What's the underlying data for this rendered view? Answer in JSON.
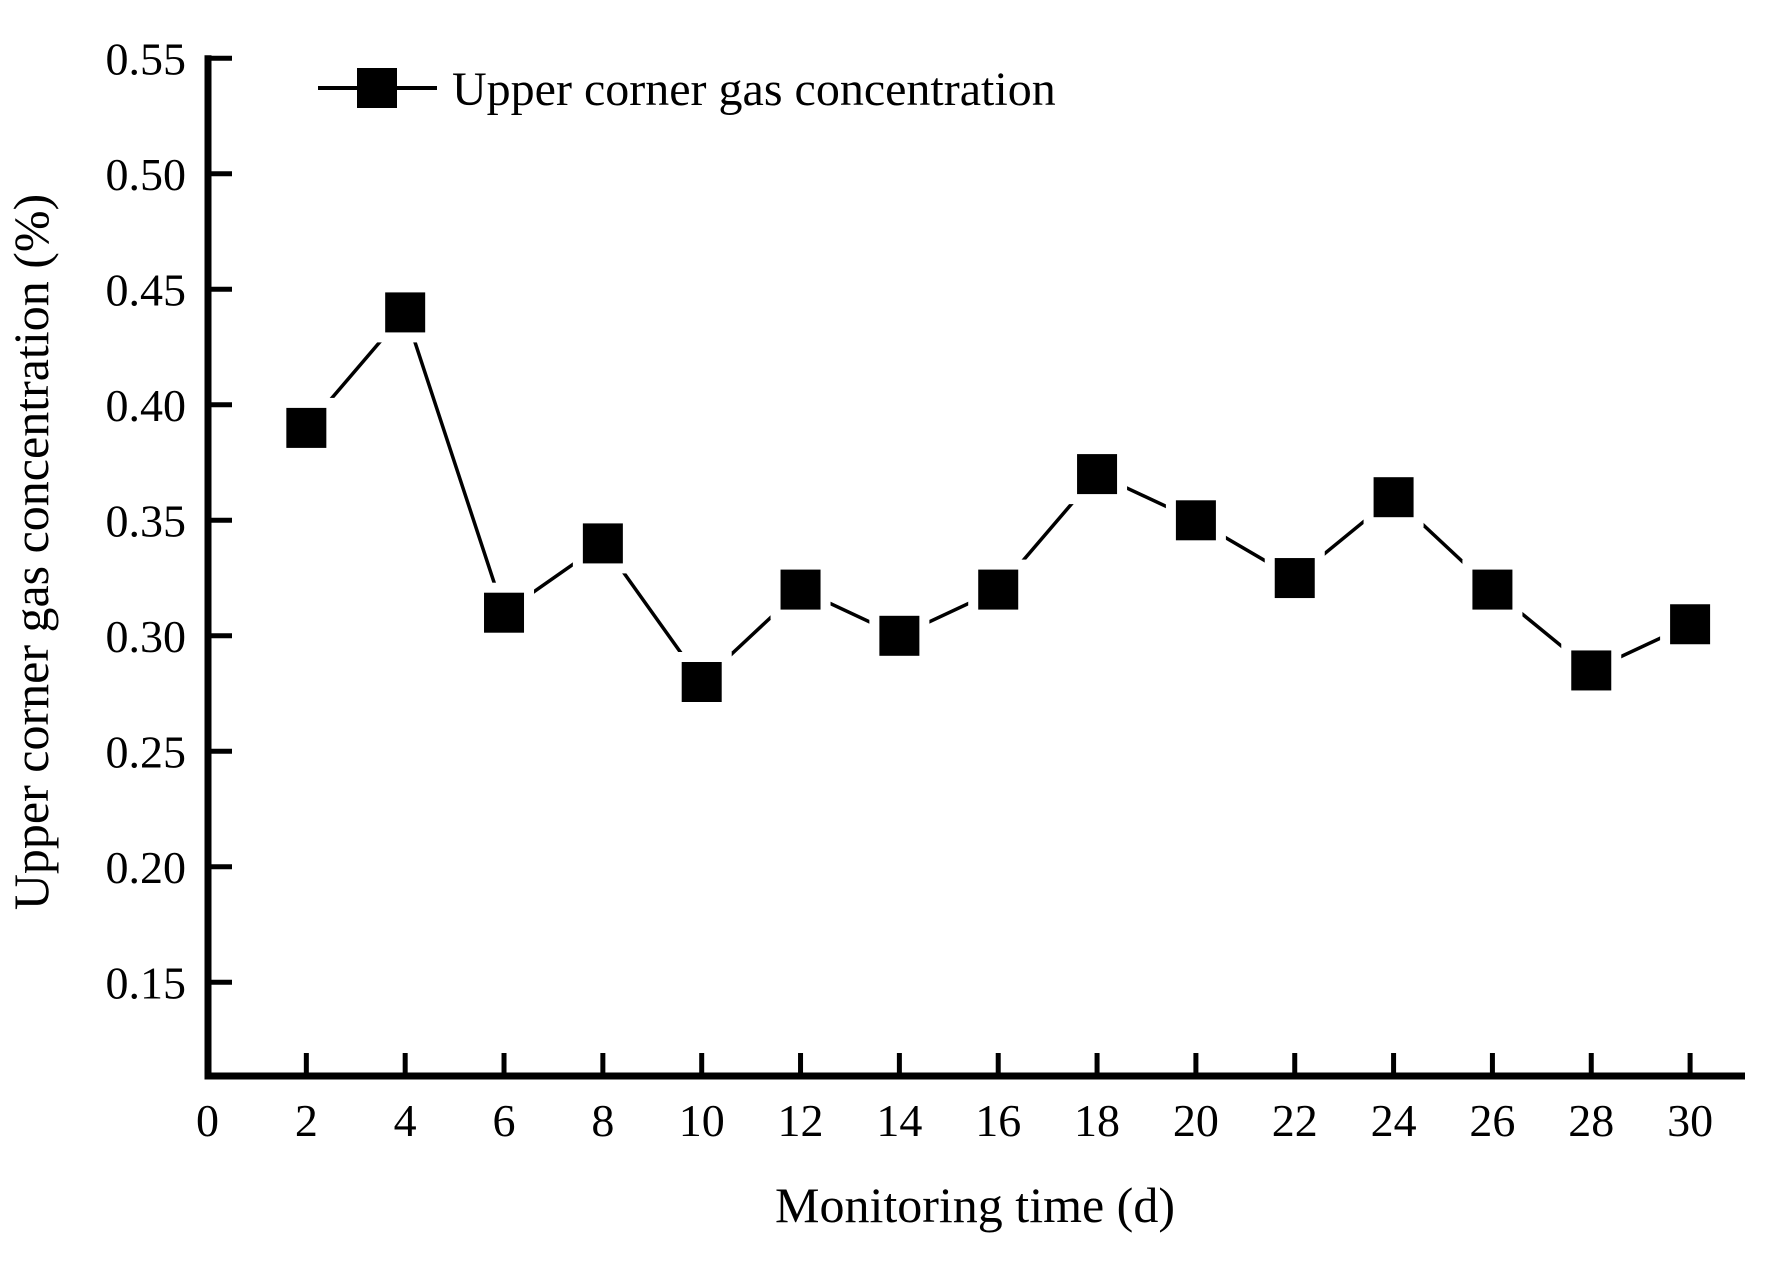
{
  "chart_data": {
    "type": "line",
    "title": "",
    "xlabel": "Monitoring time (d)",
    "ylabel": "Upper corner gas concentration (%)",
    "series": [
      {
        "name": "Upper corner gas concentration",
        "marker": "filled-square",
        "x": [
          2,
          4,
          6,
          8,
          10,
          12,
          14,
          16,
          18,
          20,
          22,
          24,
          26,
          28,
          30
        ],
        "y": [
          0.39,
          0.44,
          0.31,
          0.34,
          0.28,
          0.32,
          0.3,
          0.32,
          0.37,
          0.35,
          0.325,
          0.36,
          0.32,
          0.285,
          0.305
        ]
      }
    ],
    "xlim": [
      0,
      31
    ],
    "ylim": [
      0.11,
      0.55
    ],
    "x_ticks": [
      0,
      2,
      4,
      6,
      8,
      10,
      12,
      14,
      16,
      18,
      20,
      22,
      24,
      26,
      28,
      30
    ],
    "x_tick_labels": [
      "0",
      "2",
      "4",
      "6",
      "8",
      "10",
      "12",
      "14",
      "16",
      "18",
      "20",
      "22",
      "24",
      "26",
      "28",
      "30"
    ],
    "y_ticks": [
      0.55,
      0.5,
      0.45,
      0.4,
      0.35,
      0.3,
      0.25,
      0.2,
      0.15
    ],
    "y_tick_labels": [
      "0.55",
      "0.50",
      "0.45",
      "0.40",
      "0.35",
      "0.30",
      "0.25",
      "0.20",
      "0.15"
    ],
    "grid": false,
    "legend_position": "top-left-inside",
    "colors": {
      "line": "#000000",
      "marker": "#000000",
      "text": "#000000",
      "background": "#ffffff"
    }
  }
}
